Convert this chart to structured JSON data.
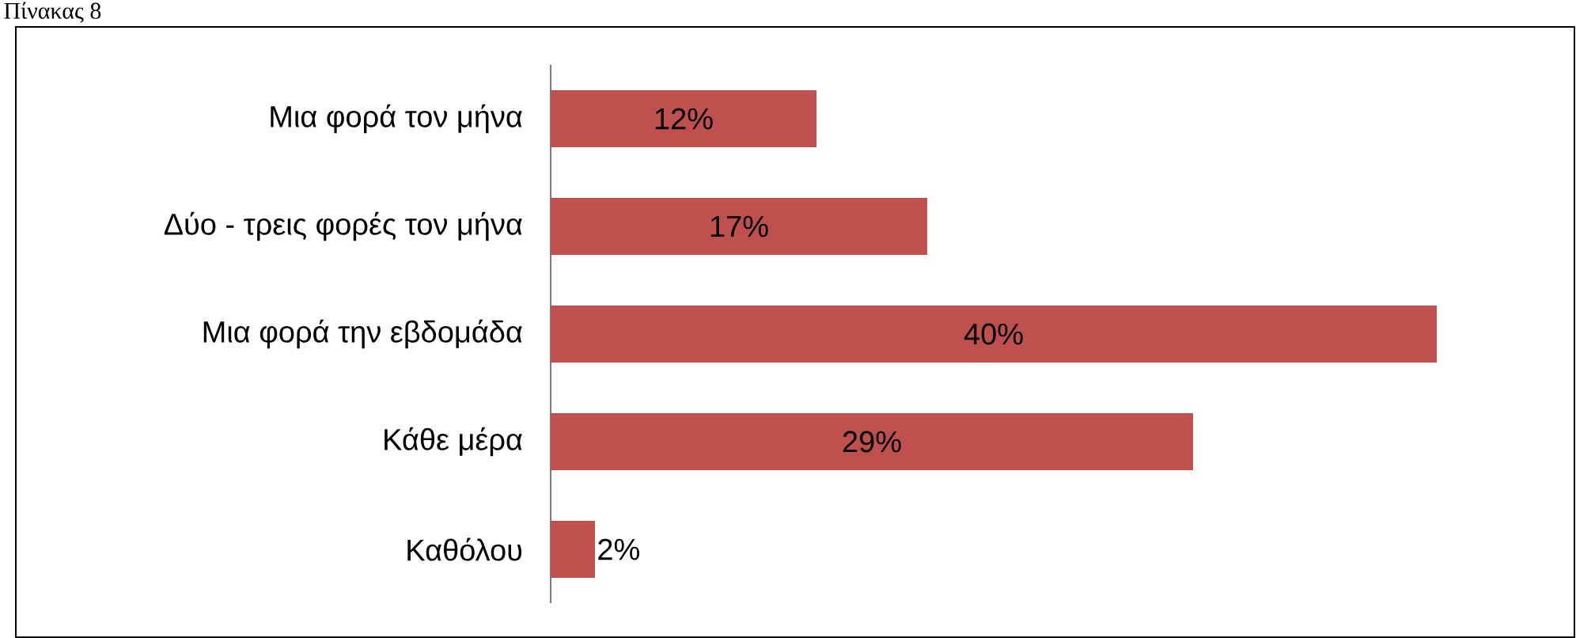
{
  "chart_data": {
    "type": "bar",
    "orientation": "horizontal",
    "title": "Πίνακας 8",
    "categories": [
      "Μια φορά τον μήνα",
      "Δύο - τρεις φορές τον μήνα",
      "Μια φορά την εβδομάδα",
      "Κάθε μέρα",
      "Καθόλου"
    ],
    "values": [
      12,
      17,
      40,
      29,
      2
    ],
    "value_labels": [
      "12%",
      "17%",
      "40%",
      "29%",
      "2%"
    ],
    "color": "#c0504d"
  }
}
